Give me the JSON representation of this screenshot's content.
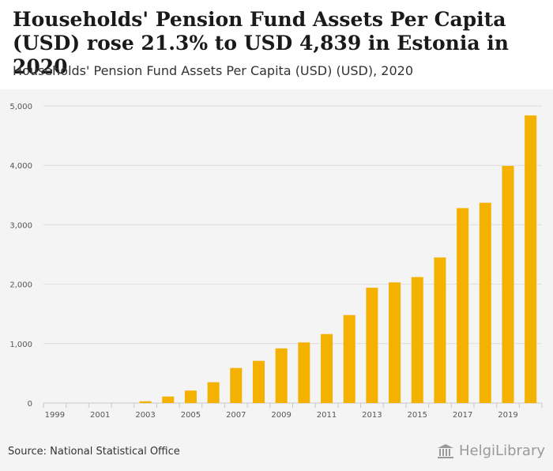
{
  "header": {
    "title": "Households' Pension Fund Assets Per Capita (USD) rose 21.3% to USD 4,839 in Estonia in 2020",
    "subtitle": "Households' Pension Fund Assets Per Capita (USD) (USD), 2020"
  },
  "footer": {
    "source": "Source: National Statistical Office",
    "brand": "HelgiLibrary"
  },
  "colors": {
    "bar": "#f5b100",
    "grid": "#dcdcdc",
    "axis": "#c8c8c8",
    "tick_text": "#555555"
  },
  "chart_data": {
    "type": "bar",
    "title": "Households' Pension Fund Assets Per Capita (USD) rose 21.3% to USD 4,839 in Estonia in 2020",
    "xlabel": "",
    "ylabel": "",
    "ylim": [
      0,
      5000
    ],
    "yticks": [
      0,
      1000,
      2000,
      3000,
      4000,
      5000
    ],
    "ytick_labels": [
      "0",
      "1,000",
      "2,000",
      "3,000",
      "4,000",
      "5,000"
    ],
    "categories": [
      "1999",
      "2000",
      "2001",
      "2002",
      "2003",
      "2004",
      "2005",
      "2006",
      "2007",
      "2008",
      "2009",
      "2010",
      "2011",
      "2012",
      "2013",
      "2014",
      "2015",
      "2016",
      "2017",
      "2018",
      "2019",
      "2020"
    ],
    "xtick_labels": [
      "1999",
      "",
      "2001",
      "",
      "2003",
      "",
      "2005",
      "",
      "2007",
      "",
      "2009",
      "",
      "2011",
      "",
      "2013",
      "",
      "2015",
      "",
      "2017",
      "",
      "2019",
      ""
    ],
    "values": [
      0,
      0,
      0,
      0,
      30,
      110,
      210,
      350,
      590,
      710,
      920,
      1020,
      1160,
      1480,
      1940,
      2030,
      2120,
      2450,
      3280,
      3370,
      3990,
      4839
    ],
    "grid": true,
    "legend": "none"
  }
}
